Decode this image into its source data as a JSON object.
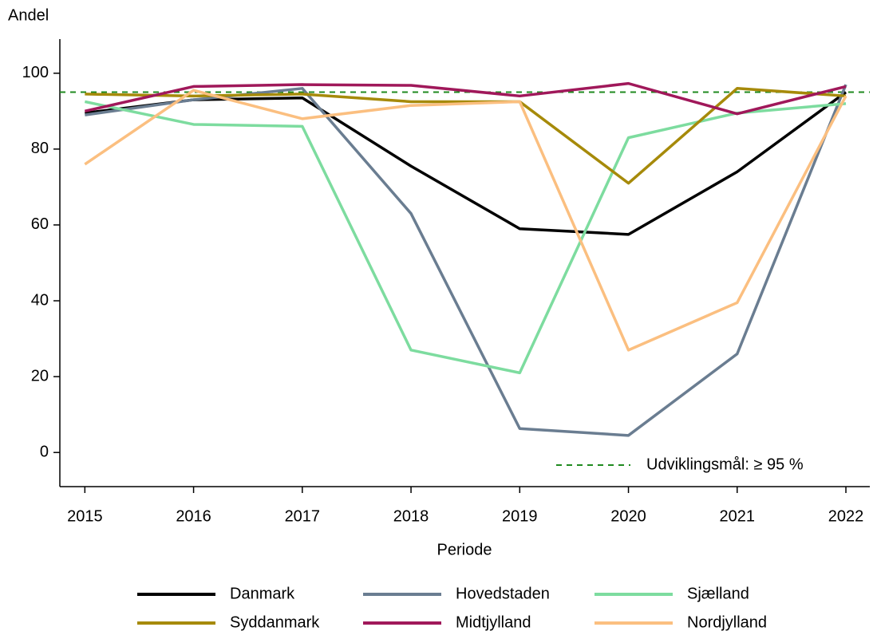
{
  "chart_data": {
    "type": "line",
    "y_label": "Andel",
    "x_label": "Periode",
    "x": [
      2015,
      2016,
      2017,
      2018,
      2019,
      2020,
      2021,
      2022
    ],
    "xlim": [
      2014.77,
      2022.22
    ],
    "xticks": [
      2015,
      2016,
      2017,
      2018,
      2019,
      2020,
      2021,
      2022
    ],
    "ylim": [
      -9,
      109
    ],
    "yticks": [
      0,
      20,
      40,
      60,
      80,
      100
    ],
    "target": {
      "value": 95,
      "label": "Udviklingsmål: ≥ 95 %",
      "color": "#1f8a1f"
    },
    "series": [
      {
        "name": "Danmark",
        "color": "#000000",
        "values": [
          89.5,
          93,
          93.5,
          75.5,
          59,
          57.5,
          74,
          95
        ]
      },
      {
        "name": "Hovedstaden",
        "color": "#6a7d91",
        "values": [
          89,
          93,
          96,
          63,
          6.3,
          4.5,
          26,
          97
        ]
      },
      {
        "name": "Sjælland",
        "color": "#7ddc9f",
        "values": [
          92.5,
          86.5,
          86,
          27,
          21,
          83,
          89.5,
          92
        ]
      },
      {
        "name": "Syddanmark",
        "color": "#a68a0a",
        "values": [
          94.5,
          94,
          94.5,
          92.5,
          92.5,
          71,
          96,
          94
        ]
      },
      {
        "name": "Midtjylland",
        "color": "#a0185a",
        "values": [
          90,
          96.5,
          97,
          96.8,
          94,
          97.3,
          89.3,
          96.5
        ]
      },
      {
        "name": "Nordjylland",
        "color": "#fbbf80",
        "values": [
          76,
          95.5,
          88,
          91.5,
          92.5,
          27,
          39.5,
          94
        ]
      }
    ]
  }
}
